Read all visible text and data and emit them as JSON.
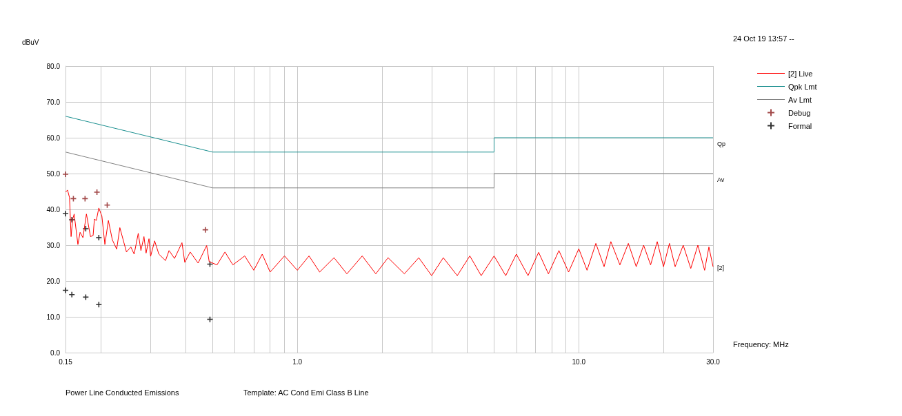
{
  "chart_data": {
    "type": "line",
    "xlabel": "Frequency: MHz",
    "ylabel": "dBuV",
    "annotations": [
      "24 Oct 19 13:57 --",
      "Power Line Conducted Emissions",
      "Template: AC Cond Emi Class B Line",
      "Qp",
      "Av",
      "[2]"
    ],
    "log": "x",
    "grid": true,
    "legend": "right",
    "xlim": [
      0.15,
      30
    ],
    "ylim": [
      0,
      80
    ],
    "xticks": [
      0.15,
      {
        "value": 0.2,
        "label": null
      },
      {
        "value": 0.3,
        "label": null
      },
      {
        "value": 0.4,
        "label": null
      },
      {
        "value": 0.5,
        "label": null
      },
      {
        "value": 0.6,
        "label": null
      },
      {
        "value": 0.7,
        "label": null
      },
      {
        "value": 0.8,
        "label": null
      },
      {
        "value": 0.9,
        "label": null
      },
      {
        "value": 1,
        "label": "1.0"
      },
      {
        "value": 2,
        "label": null
      },
      {
        "value": 3,
        "label": null
      },
      {
        "value": 4,
        "label": null
      },
      {
        "value": 5,
        "label": null
      },
      {
        "value": 6,
        "label": null
      },
      {
        "value": 7,
        "label": null
      },
      {
        "value": 8,
        "label": null
      },
      {
        "value": 9,
        "label": null
      },
      {
        "value": 10,
        "label": "10.0"
      },
      {
        "value": 20,
        "label": null
      },
      {
        "value": 30,
        "label": "30.0"
      }
    ],
    "yticks": [
      {
        "value": 0,
        "label": "0.0"
      },
      {
        "value": 10,
        "label": "10.0"
      },
      {
        "value": 20,
        "label": "20.0"
      },
      {
        "value": 30,
        "label": "30.0"
      },
      {
        "value": 40,
        "label": "40.0"
      },
      {
        "value": 50,
        "label": "50.0"
      },
      {
        "value": 60,
        "label": "60.0"
      },
      {
        "value": 70,
        "label": "70.0"
      },
      {
        "value": 80,
        "label": "80.0"
      }
    ],
    "series": [
      {
        "name": "[2] Live",
        "type": "line",
        "marker": "none",
        "color": "#ff0000",
        "x": [
          0.15,
          0.1525,
          0.155,
          0.157,
          0.159,
          0.161,
          0.166,
          0.169,
          0.173,
          0.178,
          0.184,
          0.188,
          0.19,
          0.193,
          0.197,
          0.202,
          0.207,
          0.213,
          0.22,
          0.228,
          0.234,
          0.247,
          0.256,
          0.263,
          0.272,
          0.278,
          0.285,
          0.29,
          0.297,
          0.301,
          0.311,
          0.322,
          0.34,
          0.35,
          0.366,
          0.389,
          0.398,
          0.416,
          0.444,
          0.476,
          0.486,
          0.518,
          0.553,
          0.59,
          0.65,
          0.7,
          0.75,
          0.8,
          0.9,
          1.0,
          1.1,
          1.2,
          1.35,
          1.5,
          1.7,
          1.9,
          2.1,
          2.4,
          2.7,
          3.0,
          3.3,
          3.7,
          4.1,
          4.5,
          5.0,
          5.5,
          6.0,
          6.6,
          7.2,
          7.8,
          8.5,
          9.2,
          10,
          10.7,
          11.5,
          12.3,
          13,
          14,
          15,
          16,
          17,
          18,
          19,
          20,
          21,
          22,
          23.5,
          25,
          26.5,
          28,
          29,
          30
        ],
        "values": [
          44.8,
          45.4,
          43.3,
          32.4,
          37.2,
          38.7,
          30.2,
          33.6,
          32.1,
          38.7,
          32.4,
          32.7,
          37.3,
          36.9,
          40.4,
          38.1,
          30.2,
          36.9,
          31.5,
          28.9,
          34.9,
          28.1,
          29.5,
          27.5,
          33.3,
          28.5,
          32.4,
          27.8,
          31.8,
          26.9,
          31.2,
          27.5,
          25.7,
          28.5,
          26.3,
          30.7,
          25.2,
          28.1,
          25.0,
          29.9,
          25.4,
          24.5,
          28.1,
          24.5,
          27,
          23,
          27.5,
          22.5,
          27,
          23,
          27,
          22.5,
          26.5,
          22,
          27,
          22,
          26.5,
          22,
          26.5,
          21.5,
          26.5,
          21.5,
          27,
          21.5,
          27,
          21.5,
          27.5,
          21.5,
          28,
          22,
          28.5,
          22.5,
          29,
          23,
          30.5,
          24,
          31,
          24.5,
          30.5,
          24,
          30,
          24.5,
          31,
          24,
          30.5,
          24,
          30,
          23.5,
          30,
          23,
          29.5,
          24
        ]
      },
      {
        "name": "Qpk Lmt",
        "type": "line",
        "marker": "none",
        "color": "#1a8f8f",
        "x": [
          0.15,
          0.5,
          5,
          5,
          30
        ],
        "values": [
          66,
          56,
          56,
          60,
          60
        ]
      },
      {
        "name": "Av Lmt",
        "type": "line",
        "marker": "none",
        "color": "#808080",
        "x": [
          0.15,
          0.5,
          5,
          5,
          30
        ],
        "values": [
          56,
          46,
          46,
          50,
          50
        ]
      },
      {
        "name": "Debug",
        "type": "scatter",
        "marker": "cross",
        "color": "#8b1a1a",
        "x": [
          0.15,
          0.16,
          0.176,
          0.194,
          0.211,
          0.471
        ],
        "values": [
          49.8,
          43.0,
          43.0,
          44.8,
          41.2,
          34.3
        ]
      },
      {
        "name": "Formal",
        "type": "scatter",
        "marker": "cross",
        "color": "#000000",
        "x": [
          0.15,
          0.158,
          0.177,
          0.197,
          0.489,
          0.15,
          0.158,
          0.177,
          0.197,
          0.489
        ],
        "values": [
          38.8,
          37.1,
          34.6,
          32.1,
          24.7,
          17.4,
          16.2,
          15.5,
          13.4,
          9.3
        ]
      }
    ]
  }
}
